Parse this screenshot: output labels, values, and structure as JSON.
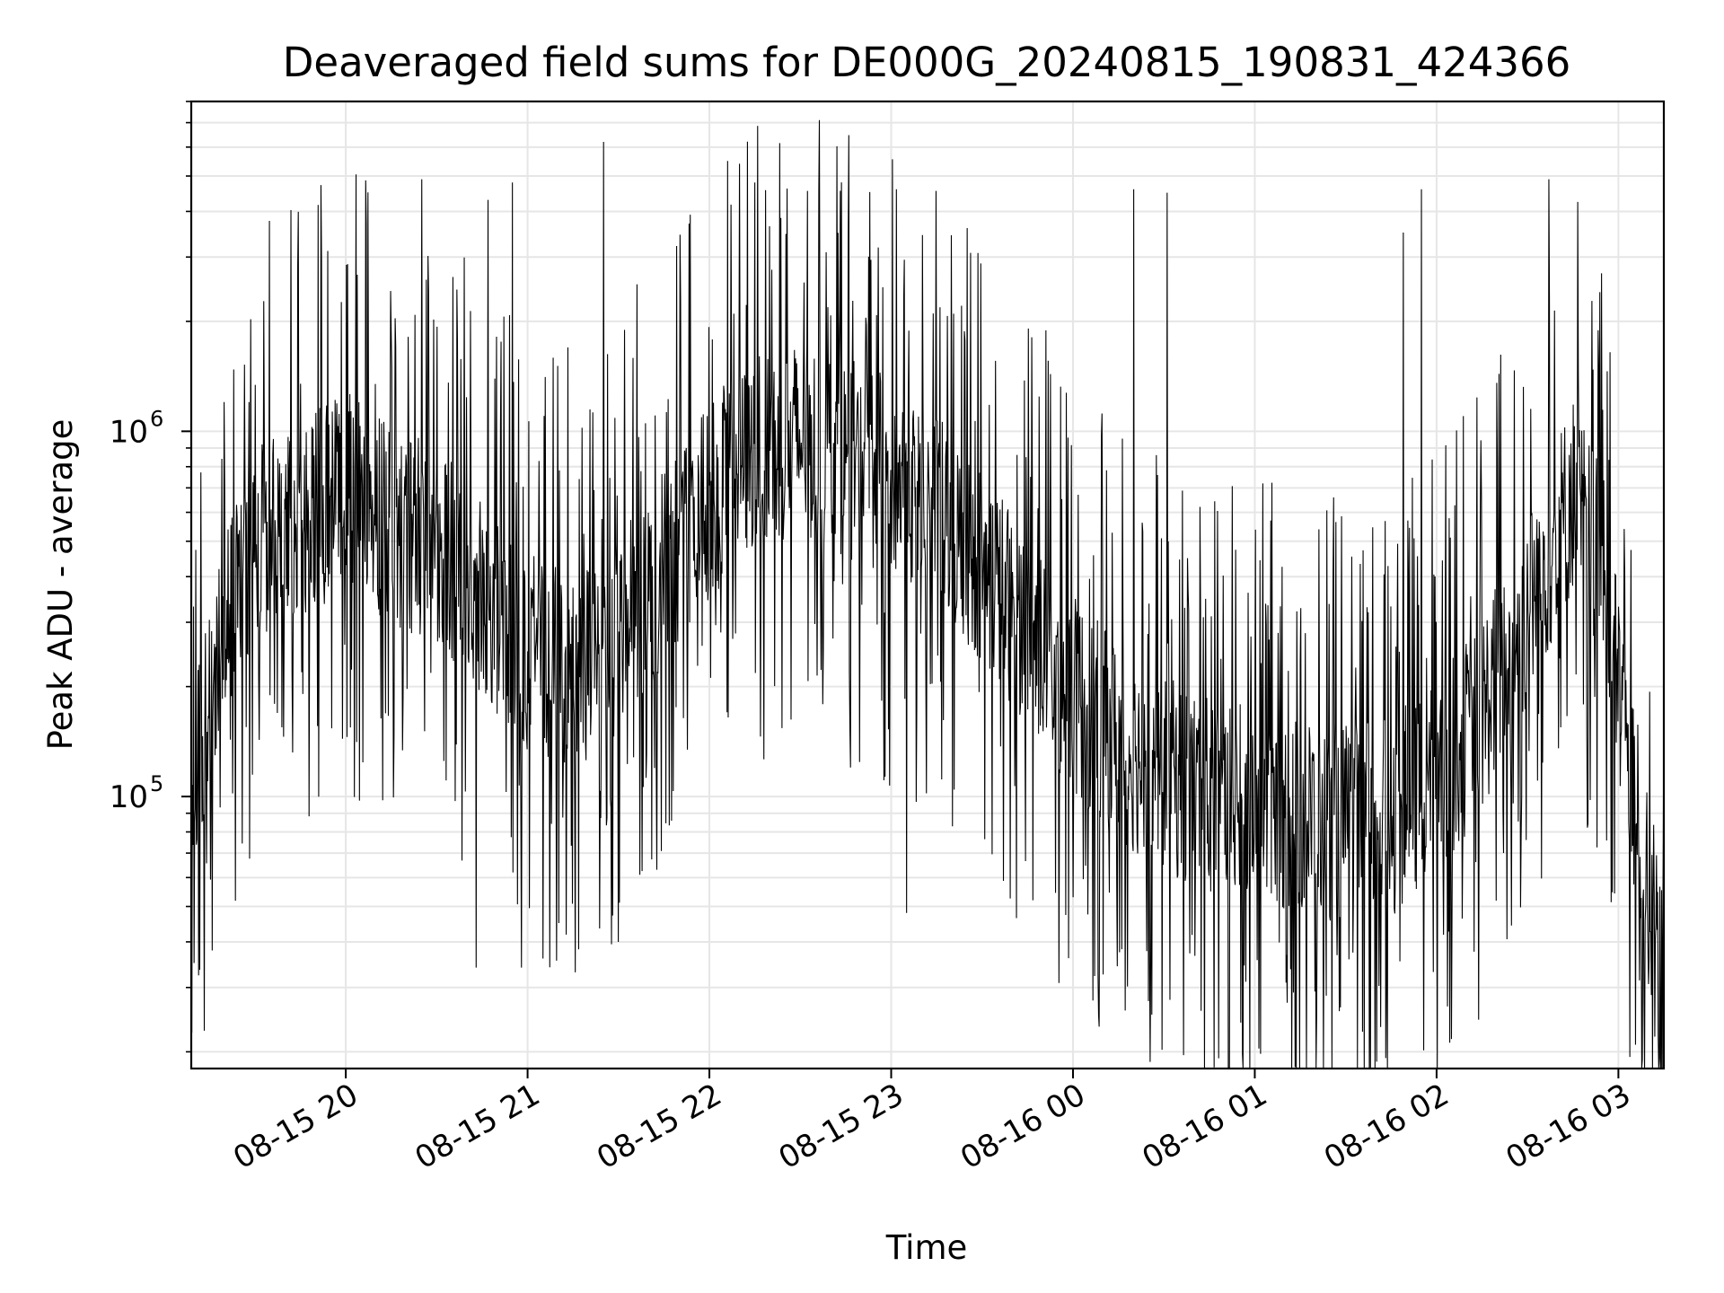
{
  "chart_data": {
    "type": "line",
    "title": "Deaveraged field sums for DE000G_20240815_190831_424366",
    "xlabel": "Time",
    "ylabel": "Peak ADU - average",
    "y_scale": "log",
    "x_range": [
      "2024-08-15 19:09",
      "2024-08-16 03:15"
    ],
    "ylim": [
      18000,
      8000000
    ],
    "grid": true,
    "line_color": "#000000",
    "grid_color": "#e6e6e6",
    "x_ticks": [
      {
        "time": "2024-08-15 20:00",
        "label": "08-15 20"
      },
      {
        "time": "2024-08-15 21:00",
        "label": "08-15 21"
      },
      {
        "time": "2024-08-15 22:00",
        "label": "08-15 22"
      },
      {
        "time": "2024-08-15 23:00",
        "label": "08-15 23"
      },
      {
        "time": "2024-08-16 00:00",
        "label": "08-16 00"
      },
      {
        "time": "2024-08-16 01:00",
        "label": "08-16 01"
      },
      {
        "time": "2024-08-16 02:00",
        "label": "08-16 02"
      },
      {
        "time": "2024-08-16 03:00",
        "label": "08-16 03"
      }
    ],
    "y_ticks": [
      {
        "value": 100000,
        "base": "10",
        "exponent": "5"
      },
      {
        "value": 1000000,
        "base": "10",
        "exponent": "6"
      }
    ],
    "series": [
      {
        "values_note_omitted": false,
        "envelope": [
          {
            "time": "2024-08-15 19:10",
            "value": 110000
          },
          {
            "time": "2024-08-15 19:20",
            "value": 300000
          },
          {
            "time": "2024-08-15 19:30",
            "value": 520000
          },
          {
            "time": "2024-08-15 19:45",
            "value": 560000
          },
          {
            "time": "2024-08-15 20:00",
            "value": 700000
          },
          {
            "time": "2024-08-15 20:15",
            "value": 550000
          },
          {
            "time": "2024-08-15 20:30",
            "value": 500000
          },
          {
            "time": "2024-08-15 20:45",
            "value": 350000
          },
          {
            "time": "2024-08-15 21:00",
            "value": 250000
          },
          {
            "time": "2024-08-15 21:15",
            "value": 220000
          },
          {
            "time": "2024-08-15 21:30",
            "value": 280000
          },
          {
            "time": "2024-08-15 21:45",
            "value": 420000
          },
          {
            "time": "2024-08-15 22:00",
            "value": 650000
          },
          {
            "time": "2024-08-15 22:15",
            "value": 880000
          },
          {
            "time": "2024-08-15 22:30",
            "value": 950000
          },
          {
            "time": "2024-08-15 22:45",
            "value": 850000
          },
          {
            "time": "2024-08-15 23:00",
            "value": 750000
          },
          {
            "time": "2024-08-15 23:15",
            "value": 600000
          },
          {
            "time": "2024-08-15 23:30",
            "value": 430000
          },
          {
            "time": "2024-08-15 23:45",
            "value": 290000
          },
          {
            "time": "2024-08-16 00:00",
            "value": 190000
          },
          {
            "time": "2024-08-16 00:15",
            "value": 140000
          },
          {
            "time": "2024-08-16 00:30",
            "value": 115000
          },
          {
            "time": "2024-08-16 00:45",
            "value": 100000
          },
          {
            "time": "2024-08-16 01:00",
            "value": 95000
          },
          {
            "time": "2024-08-16 01:15",
            "value": 88000
          },
          {
            "time": "2024-08-16 01:30",
            "value": 85000
          },
          {
            "time": "2024-08-16 01:45",
            "value": 88000
          },
          {
            "time": "2024-08-16 02:00",
            "value": 110000
          },
          {
            "time": "2024-08-16 02:15",
            "value": 170000
          },
          {
            "time": "2024-08-16 02:30",
            "value": 320000
          },
          {
            "time": "2024-08-16 02:45",
            "value": 680000
          },
          {
            "time": "2024-08-16 02:55",
            "value": 400000
          },
          {
            "time": "2024-08-16 03:05",
            "value": 100000
          },
          {
            "time": "2024-08-16 03:15",
            "value": 30000
          }
        ],
        "peaks": [
          {
            "time": "2024-08-15 21:25",
            "value": 6200000
          },
          {
            "time": "2024-08-15 22:06",
            "value": 5500000
          },
          {
            "time": "2024-08-15 22:10",
            "value": 5400000
          },
          {
            "time": "2024-08-15 22:15",
            "value": 4800000
          },
          {
            "time": "2024-08-15 20:25",
            "value": 4900000
          },
          {
            "time": "2024-08-15 20:55",
            "value": 4800000
          },
          {
            "time": "2024-08-15 20:47",
            "value": 4300000
          },
          {
            "time": "2024-08-16 00:20",
            "value": 4600000
          },
          {
            "time": "2024-08-16 00:31",
            "value": 4500000
          },
          {
            "time": "2024-08-16 01:55",
            "value": 4600000
          },
          {
            "time": "2024-08-16 02:37",
            "value": 4900000
          },
          {
            "time": "2024-08-15 23:25",
            "value": 3600000
          },
          {
            "time": "2024-08-16 01:49",
            "value": 3500000
          }
        ],
        "troughs": [
          {
            "time": "2024-08-15 19:10",
            "value": 35000
          },
          {
            "time": "2024-08-15 20:43",
            "value": 34000
          },
          {
            "time": "2024-08-15 20:58",
            "value": 34000
          },
          {
            "time": "2024-08-15 21:05",
            "value": 36000
          },
          {
            "time": "2024-08-15 21:30",
            "value": 40000
          },
          {
            "time": "2024-08-15 23:05",
            "value": 48000
          },
          {
            "time": "2024-08-16 00:00",
            "value": 53000
          },
          {
            "time": "2024-08-16 03:12",
            "value": 22000
          }
        ]
      }
    ]
  }
}
